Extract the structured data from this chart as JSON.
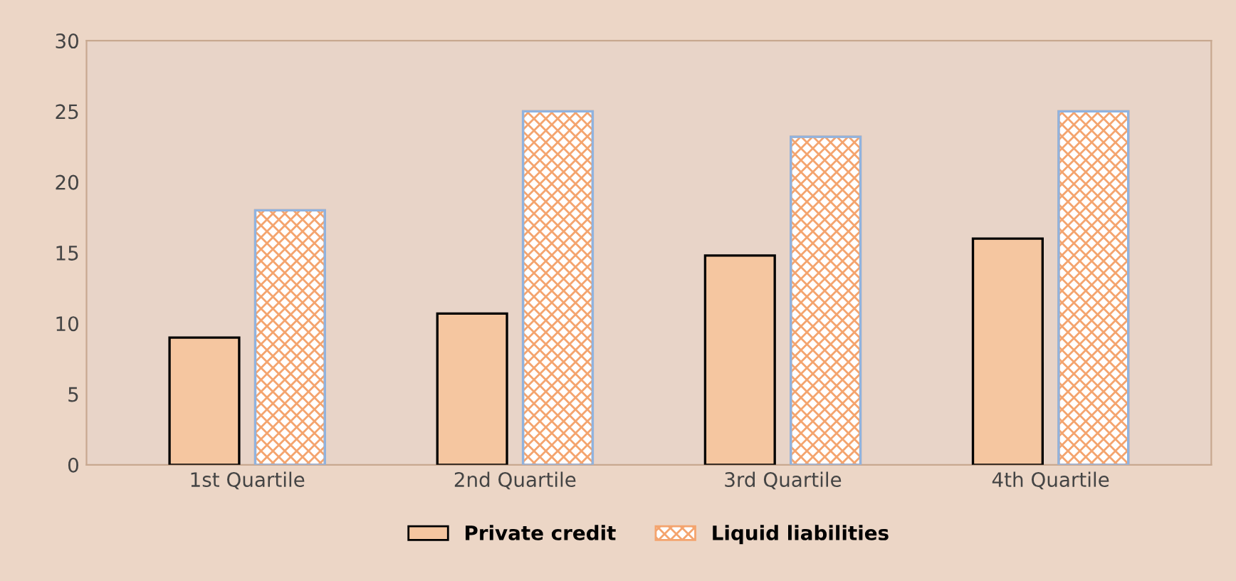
{
  "chart_data": {
    "type": "bar",
    "categories": [
      "1st Quartile",
      "2nd Quartile",
      "3rd Quartile",
      "4th Quartile"
    ],
    "series": [
      {
        "name": "Private credit",
        "color": "#f5c6a0",
        "values": [
          9,
          10.7,
          14.8,
          16
        ]
      },
      {
        "name": "Liquid liabilities",
        "color": "#f4a46e",
        "values": [
          18,
          25,
          23.2,
          25
        ]
      }
    ],
    "ylim": [
      0,
      30
    ],
    "yticks": [
      0,
      5,
      10,
      15,
      20,
      25,
      30
    ],
    "grid": false,
    "legend": "bottom"
  }
}
